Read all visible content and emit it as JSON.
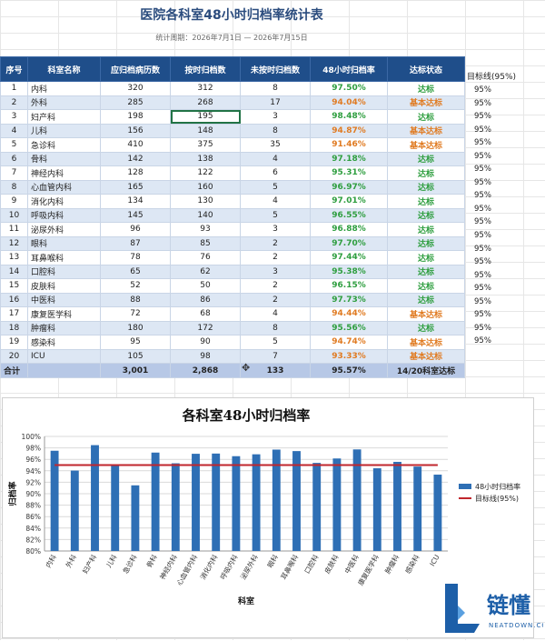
{
  "title": "医院各科室48小时归档率统计表",
  "period": "统计周期：2026年7月1日 — 2026年7月15日",
  "columns": [
    "序号",
    "科室名称",
    "应归档病历数",
    "按时归档数",
    "未按时归档数",
    "48小时归档率",
    "达标状态"
  ],
  "target_header": "目标线(95%)",
  "rows": [
    {
      "no": "1",
      "dept": "内科",
      "due": "320",
      "ontime": "312",
      "late": "8",
      "rate": "97.50%",
      "status": "达标",
      "level": "ok",
      "target": "95%"
    },
    {
      "no": "2",
      "dept": "外科",
      "due": "285",
      "ontime": "268",
      "late": "17",
      "rate": "94.04%",
      "status": "基本达标",
      "level": "warn",
      "target": "95%"
    },
    {
      "no": "3",
      "dept": "妇产科",
      "due": "198",
      "ontime": "195",
      "late": "3",
      "rate": "98.48%",
      "status": "达标",
      "level": "ok",
      "target": "95%"
    },
    {
      "no": "4",
      "dept": "儿科",
      "due": "156",
      "ontime": "148",
      "late": "8",
      "rate": "94.87%",
      "status": "基本达标",
      "level": "warn",
      "target": "95%"
    },
    {
      "no": "5",
      "dept": "急诊科",
      "due": "410",
      "ontime": "375",
      "late": "35",
      "rate": "91.46%",
      "status": "基本达标",
      "level": "warn",
      "target": "95%"
    },
    {
      "no": "6",
      "dept": "骨科",
      "due": "142",
      "ontime": "138",
      "late": "4",
      "rate": "97.18%",
      "status": "达标",
      "level": "ok",
      "target": "95%"
    },
    {
      "no": "7",
      "dept": "神经内科",
      "due": "128",
      "ontime": "122",
      "late": "6",
      "rate": "95.31%",
      "status": "达标",
      "level": "ok",
      "target": "95%"
    },
    {
      "no": "8",
      "dept": "心血管内科",
      "due": "165",
      "ontime": "160",
      "late": "5",
      "rate": "96.97%",
      "status": "达标",
      "level": "ok",
      "target": "95%"
    },
    {
      "no": "9",
      "dept": "消化内科",
      "due": "134",
      "ontime": "130",
      "late": "4",
      "rate": "97.01%",
      "status": "达标",
      "level": "ok",
      "target": "95%"
    },
    {
      "no": "10",
      "dept": "呼吸内科",
      "due": "145",
      "ontime": "140",
      "late": "5",
      "rate": "96.55%",
      "status": "达标",
      "level": "ok",
      "target": "95%"
    },
    {
      "no": "11",
      "dept": "泌尿外科",
      "due": "96",
      "ontime": "93",
      "late": "3",
      "rate": "96.88%",
      "status": "达标",
      "level": "ok",
      "target": "95%"
    },
    {
      "no": "12",
      "dept": "眼科",
      "due": "87",
      "ontime": "85",
      "late": "2",
      "rate": "97.70%",
      "status": "达标",
      "level": "ok",
      "target": "95%"
    },
    {
      "no": "13",
      "dept": "耳鼻喉科",
      "due": "78",
      "ontime": "76",
      "late": "2",
      "rate": "97.44%",
      "status": "达标",
      "level": "ok",
      "target": "95%"
    },
    {
      "no": "14",
      "dept": "口腔科",
      "due": "65",
      "ontime": "62",
      "late": "3",
      "rate": "95.38%",
      "status": "达标",
      "level": "ok",
      "target": "95%"
    },
    {
      "no": "15",
      "dept": "皮肤科",
      "due": "52",
      "ontime": "50",
      "late": "2",
      "rate": "96.15%",
      "status": "达标",
      "level": "ok",
      "target": "95%"
    },
    {
      "no": "16",
      "dept": "中医科",
      "due": "88",
      "ontime": "86",
      "late": "2",
      "rate": "97.73%",
      "status": "达标",
      "level": "ok",
      "target": "95%"
    },
    {
      "no": "17",
      "dept": "康复医学科",
      "due": "72",
      "ontime": "68",
      "late": "4",
      "rate": "94.44%",
      "status": "基本达标",
      "level": "warn",
      "target": "95%"
    },
    {
      "no": "18",
      "dept": "肿瘤科",
      "due": "180",
      "ontime": "172",
      "late": "8",
      "rate": "95.56%",
      "status": "达标",
      "level": "ok",
      "target": "95%"
    },
    {
      "no": "19",
      "dept": "感染科",
      "due": "95",
      "ontime": "90",
      "late": "5",
      "rate": "94.74%",
      "status": "基本达标",
      "level": "warn",
      "target": "95%"
    },
    {
      "no": "20",
      "dept": "ICU",
      "due": "105",
      "ontime": "98",
      "late": "7",
      "rate": "93.33%",
      "status": "基本达标",
      "level": "warn",
      "target": "95%"
    }
  ],
  "totals": {
    "label": "合计",
    "due": "3,001",
    "ontime": "2,868",
    "late": "133",
    "rate": "95.57%",
    "status": "14/20科室达标"
  },
  "colors": {
    "header": "#1f4e8a",
    "ok": "#2e9e3f",
    "warn": "#e07b22",
    "bar": "#2e6fb5",
    "target": "#c0262d"
  },
  "logo": {
    "cn": "链懂",
    "en": "NEATDOWN.COM"
  },
  "chart_data": {
    "type": "bar",
    "title": "各科室48小时归档率",
    "xlabel": "科室",
    "ylabel": "归档率",
    "ylim": [
      80,
      100
    ],
    "yticks": [
      "80%",
      "82%",
      "84%",
      "86%",
      "88%",
      "90%",
      "92%",
      "94%",
      "96%",
      "98%",
      "100%"
    ],
    "categories": [
      "内科",
      "外科",
      "妇产科",
      "儿科",
      "急诊科",
      "骨科",
      "神经内科",
      "心血管内科",
      "消化内科",
      "呼吸内科",
      "泌尿外科",
      "眼科",
      "耳鼻喉科",
      "口腔科",
      "皮肤科",
      "中医科",
      "康复医学科",
      "肿瘤科",
      "感染科",
      "ICU"
    ],
    "series": [
      {
        "name": "48小时归档率",
        "values": [
          97.5,
          94.04,
          98.48,
          94.87,
          91.46,
          97.18,
          95.31,
          96.97,
          97.01,
          96.55,
          96.88,
          97.7,
          97.44,
          95.38,
          96.15,
          97.73,
          94.44,
          95.56,
          94.74,
          93.33
        ]
      },
      {
        "name": "目标线(95%)",
        "values": [
          95,
          95,
          95,
          95,
          95,
          95,
          95,
          95,
          95,
          95,
          95,
          95,
          95,
          95,
          95,
          95,
          95,
          95,
          95,
          95
        ]
      }
    ],
    "grid": true,
    "legend": "right"
  }
}
